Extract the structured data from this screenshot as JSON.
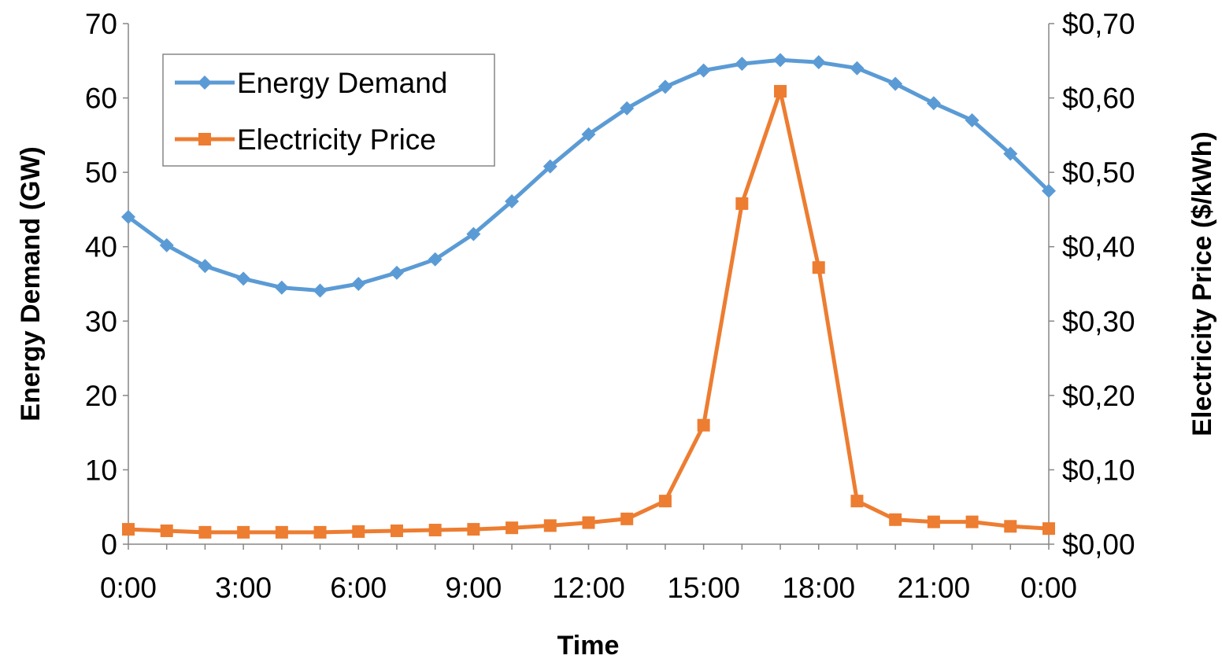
{
  "chart_data": {
    "type": "line",
    "x": [
      "0:00",
      "1:00",
      "2:00",
      "3:00",
      "4:00",
      "5:00",
      "6:00",
      "7:00",
      "8:00",
      "9:00",
      "10:00",
      "11:00",
      "12:00",
      "13:00",
      "14:00",
      "15:00",
      "16:00",
      "17:00",
      "18:00",
      "19:00",
      "20:00",
      "21:00",
      "22:00",
      "23:00",
      "0:00"
    ],
    "x_tick_labels": [
      "0:00",
      "3:00",
      "6:00",
      "9:00",
      "12:00",
      "15:00",
      "18:00",
      "21:00",
      "0:00"
    ],
    "xlabel": "Time",
    "ylabel": "Energy Demand (GW)",
    "y2label": "Electricity Price ($/kWh)",
    "ylim": [
      0,
      70
    ],
    "y2lim": [
      0,
      0.7
    ],
    "y_tick_labels": [
      "0",
      "10",
      "20",
      "30",
      "40",
      "50",
      "60",
      "70"
    ],
    "y2_tick_labels": [
      "$0,00",
      "$0,10",
      "$0,20",
      "$0,30",
      "$0,40",
      "$0,50",
      "$0,60",
      "$0,70"
    ],
    "grid": false,
    "legend_position": "top-left",
    "series": [
      {
        "name": "Energy Demand",
        "axis": "left",
        "color": "#5B9BD5",
        "marker": "diamond",
        "values": [
          44.0,
          40.2,
          37.4,
          35.7,
          34.5,
          34.1,
          35.0,
          36.5,
          38.3,
          41.7,
          46.1,
          50.8,
          55.1,
          58.6,
          61.5,
          63.7,
          64.6,
          65.1,
          64.8,
          64.0,
          61.9,
          59.3,
          57.0,
          52.5,
          47.5
        ]
      },
      {
        "name": "Electricity Price",
        "axis": "right",
        "color": "#ED7D31",
        "marker": "square",
        "values": [
          0.02,
          0.018,
          0.016,
          0.016,
          0.016,
          0.016,
          0.017,
          0.018,
          0.019,
          0.02,
          0.022,
          0.025,
          0.029,
          0.034,
          0.058,
          0.16,
          0.458,
          0.609,
          0.372,
          0.058,
          0.033,
          0.03,
          0.03,
          0.024,
          0.021
        ]
      }
    ]
  }
}
